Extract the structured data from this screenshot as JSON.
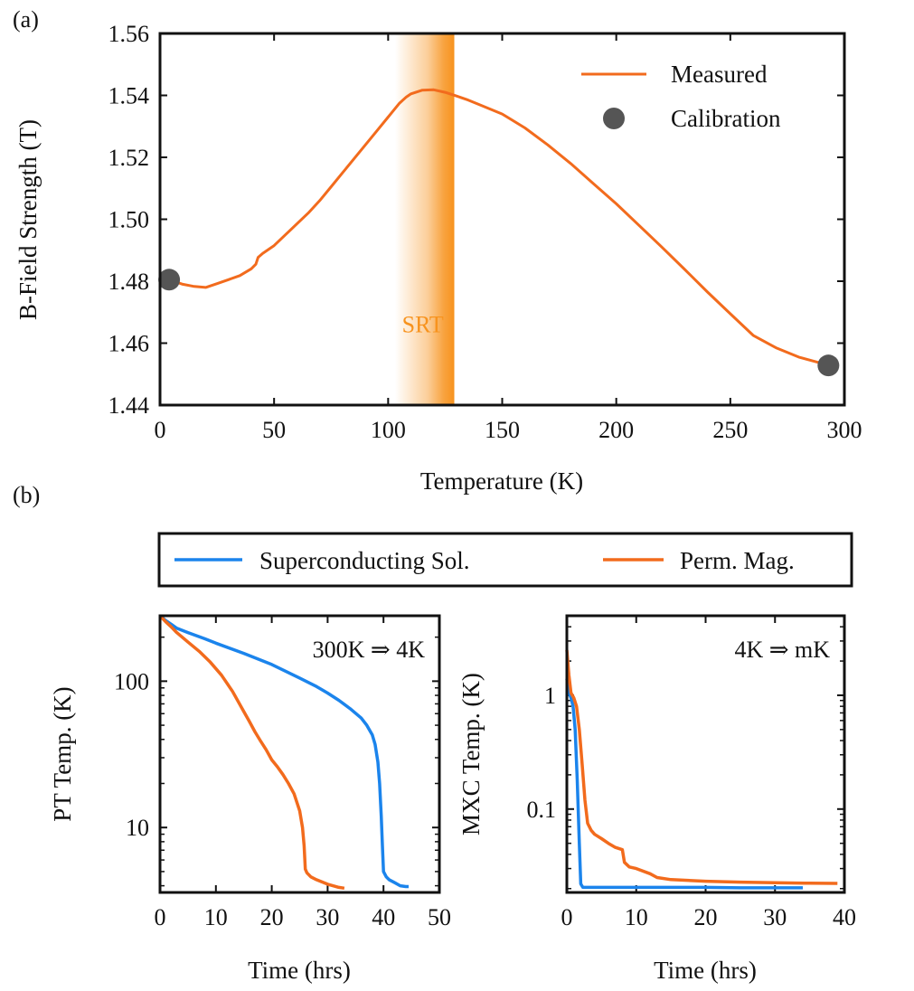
{
  "colors": {
    "orange": "#f26b1d",
    "blue": "#1b84ec",
    "calib": "#555555",
    "axis": "#111111"
  },
  "chart_data": [
    {
      "id": "a",
      "panel_label": "(a)",
      "type": "line",
      "xlabel": "Temperature (K)",
      "ylabel": "B-Field Strength (T)",
      "xlim": [
        0,
        300
      ],
      "ylim": [
        1.44,
        1.56
      ],
      "xticks": [
        0,
        50,
        100,
        150,
        200,
        250,
        300
      ],
      "yticks": [
        1.44,
        1.46,
        1.48,
        1.5,
        1.52,
        1.54,
        1.56
      ],
      "ytick_labels": [
        "1.44",
        "1.46",
        "1.48",
        "1.50",
        "1.52",
        "1.54",
        "1.56"
      ],
      "legend": [
        {
          "label": "Measured",
          "kind": "line"
        },
        {
          "label": "Calibration",
          "kind": "marker"
        }
      ],
      "band": {
        "label": "SRT",
        "x_from": 103,
        "x_to": 129
      },
      "series": [
        {
          "name": "Measured",
          "x": [
            4,
            10,
            15,
            20,
            25,
            30,
            35,
            40,
            42,
            43,
            45,
            50,
            55,
            60,
            65,
            70,
            75,
            80,
            85,
            90,
            95,
            100,
            105,
            108,
            110,
            115,
            120,
            125,
            130,
            135,
            140,
            150,
            160,
            170,
            180,
            190,
            200,
            210,
            220,
            230,
            240,
            250,
            260,
            270,
            280,
            290,
            293
          ],
          "y": [
            1.4805,
            1.479,
            1.4783,
            1.478,
            1.4792,
            1.4805,
            1.4818,
            1.484,
            1.4855,
            1.4877,
            1.489,
            1.4915,
            1.495,
            1.4985,
            1.502,
            1.506,
            1.5105,
            1.515,
            1.5195,
            1.524,
            1.5285,
            1.533,
            1.5375,
            1.5395,
            1.5405,
            1.5417,
            1.5418,
            1.541,
            1.5398,
            1.5385,
            1.537,
            1.534,
            1.5295,
            1.524,
            1.518,
            1.5115,
            1.505,
            1.498,
            1.491,
            1.4838,
            1.4765,
            1.4695,
            1.4625,
            1.4585,
            1.4555,
            1.4535,
            1.4525
          ]
        },
        {
          "name": "Calibration",
          "type": "scatter",
          "x": [
            4,
            293
          ],
          "y": [
            1.4805,
            1.4528
          ]
        }
      ]
    },
    {
      "id": "b-legend",
      "panel_label": "(b)",
      "legend": [
        {
          "label": "Superconducting Sol.",
          "color": "blue"
        },
        {
          "label": "Perm. Mag.",
          "color": "orange"
        }
      ]
    },
    {
      "id": "b-left",
      "type": "line",
      "annotation": "300K ⇒ 4K",
      "xlabel": "Time (hrs)",
      "ylabel": "PT Temp. (K)",
      "xscale": "linear",
      "yscale": "log",
      "xlim": [
        0,
        50
      ],
      "ylim": [
        3.6,
        280
      ],
      "xticks": [
        0,
        10,
        20,
        30,
        40,
        50
      ],
      "yticks": [
        10,
        100
      ],
      "ytick_labels": [
        "10",
        "100"
      ],
      "series": [
        {
          "name": "Superconducting Sol.",
          "color": "blue",
          "x": [
            0,
            1,
            2,
            3,
            5,
            8,
            10,
            15,
            20,
            25,
            28,
            30,
            32,
            34,
            36,
            37,
            38,
            38.5,
            39,
            39.3,
            39.6,
            39.8,
            40,
            40.5,
            41,
            42,
            43,
            44,
            44.5
          ],
          "y": [
            280,
            260,
            245,
            230,
            215,
            195,
            182,
            155,
            130,
            105,
            92,
            83,
            74,
            65,
            56,
            50,
            43,
            37,
            28,
            20,
            12,
            7.5,
            5.0,
            4.6,
            4.4,
            4.2,
            4.0,
            3.95,
            3.95
          ]
        },
        {
          "name": "Perm. Mag.",
          "color": "orange",
          "x": [
            0,
            1,
            2,
            3,
            5,
            7,
            9,
            11,
            13,
            15,
            16,
            17,
            18,
            19,
            20,
            21,
            22,
            23,
            24,
            25,
            25.5,
            25.8,
            26,
            26.3,
            27,
            28,
            30,
            32,
            33
          ],
          "y": [
            280,
            255,
            235,
            215,
            185,
            160,
            135,
            110,
            85,
            62,
            53,
            45,
            39,
            34,
            29,
            26,
            23,
            20,
            17,
            13,
            10,
            7.5,
            5.2,
            4.9,
            4.6,
            4.4,
            4.1,
            3.9,
            3.85
          ]
        }
      ]
    },
    {
      "id": "b-right",
      "type": "line",
      "annotation": "4K ⇒ mK",
      "xlabel": "Time (hrs)",
      "ylabel": "MXC Temp. (K)",
      "xscale": "linear",
      "yscale": "log",
      "xlim": [
        0,
        40
      ],
      "ylim": [
        0.0185,
        5
      ],
      "xticks": [
        0,
        10,
        20,
        30,
        40
      ],
      "yticks": [
        0.1,
        1
      ],
      "ytick_labels": [
        "0.1",
        "1"
      ],
      "series": [
        {
          "name": "Superconducting Sol.",
          "color": "blue",
          "x": [
            0,
            0.3,
            0.6,
            0.9,
            1.2,
            1.5,
            1.8,
            2.0,
            2.3,
            3,
            5,
            8,
            10,
            15,
            20,
            25,
            30,
            34
          ],
          "y": [
            1.4,
            1.05,
            0.95,
            0.8,
            0.5,
            0.18,
            0.05,
            0.022,
            0.0205,
            0.0205,
            0.0205,
            0.0205,
            0.0205,
            0.0205,
            0.0205,
            0.0203,
            0.0203,
            0.0203
          ]
        },
        {
          "name": "Perm. Mag.",
          "color": "orange",
          "x": [
            0,
            0.3,
            0.6,
            1.0,
            1.4,
            1.8,
            2.2,
            2.6,
            3.0,
            3.5,
            4.0,
            5,
            6,
            7,
            8,
            8.3,
            9,
            10,
            12,
            13,
            15,
            20,
            25,
            30,
            35,
            39
          ],
          "y": [
            2.5,
            1.5,
            1.05,
            0.95,
            0.8,
            0.5,
            0.25,
            0.12,
            0.075,
            0.065,
            0.06,
            0.055,
            0.05,
            0.046,
            0.044,
            0.034,
            0.031,
            0.03,
            0.027,
            0.025,
            0.024,
            0.0232,
            0.0228,
            0.0225,
            0.0223,
            0.0222
          ]
        }
      ]
    }
  ]
}
